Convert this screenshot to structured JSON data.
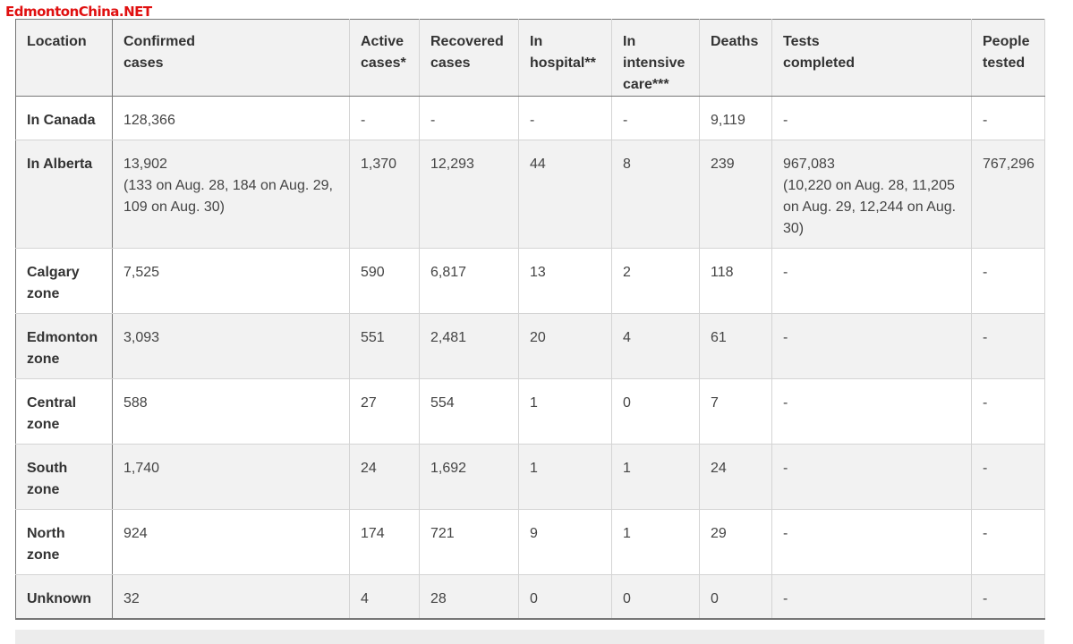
{
  "watermark": "EdmontonChina.NET",
  "headers": [
    "Location",
    "Confirmed cases",
    "Active cases*",
    "Recovered cases",
    "In hospital**",
    "In intensive care***",
    "Deaths",
    "Tests completed",
    "People tested"
  ],
  "rows": [
    [
      "In Canada",
      "128,366",
      "-",
      "-",
      "-",
      "-",
      "9,119",
      "-",
      "-"
    ],
    [
      "In Alberta",
      "13,902\n(133 on Aug. 28, 184 on Aug. 29, 109 on Aug. 30)",
      "1,370",
      "12,293",
      "44",
      "8",
      "239",
      "967,083\n(10,220 on Aug. 28, 11,205 on Aug. 29, 12,244 on Aug. 30)",
      "767,296"
    ],
    [
      "Calgary zone",
      "7,525",
      "590",
      "6,817",
      "13",
      "2",
      "118",
      "-",
      "-"
    ],
    [
      "Edmonton zone",
      "3,093",
      "551",
      "2,481",
      "20",
      "4",
      "61",
      "-",
      "-"
    ],
    [
      "Central zone",
      "588",
      "27",
      "554",
      "1",
      "0",
      "7",
      "-",
      "-"
    ],
    [
      "South zone",
      "1,740",
      "24",
      "1,692",
      "1",
      "1",
      "24",
      "-",
      "-"
    ],
    [
      "North zone",
      "924",
      "174",
      "721",
      "9",
      "1",
      "29",
      "-",
      "-"
    ],
    [
      "Unknown",
      "32",
      "4",
      "28",
      "0",
      "0",
      "0",
      "-",
      "-"
    ]
  ]
}
